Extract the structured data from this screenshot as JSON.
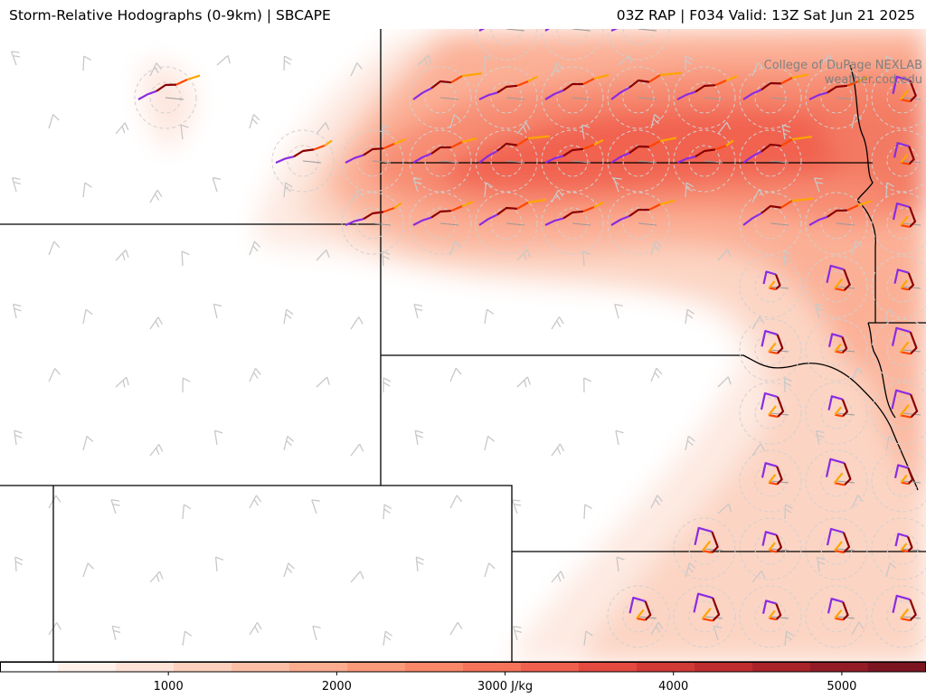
{
  "header": {
    "title_left": "Storm-Relative Hodographs (0-9km) | SBCAPE",
    "title_right": "03Z RAP | F034 Valid: 13Z Sat Jun 21 2025"
  },
  "credit": {
    "line1": "College of DuPage NEXLAB",
    "line2": "weather.cod.edu"
  },
  "colorbar": {
    "tick_labels": [
      "1000",
      "2000",
      "3000 J/kg",
      "4000",
      "5000"
    ],
    "tick_values": [
      1000,
      2000,
      3000,
      4000,
      5000
    ],
    "range": [
      0,
      5500
    ],
    "colors": [
      "#ffffff",
      "#fff1ea",
      "#ffe2d6",
      "#fdd0bd",
      "#fcbfa6",
      "#fcad8f",
      "#fb9a7a",
      "#fa8768",
      "#f6735a",
      "#f0604e",
      "#e44a3f",
      "#d23a35",
      "#c02d2e",
      "#aa2329",
      "#931c26",
      "#7d1520"
    ]
  },
  "legend_colors": {
    "layer_0_1km": "#8b0000",
    "layer_1_3km": "#ff4500",
    "layer_3_6km": "#ffa500",
    "layer_6_9km": "#8a2be2",
    "barb": "#c8c8c8",
    "boundary": "#000000"
  }
}
